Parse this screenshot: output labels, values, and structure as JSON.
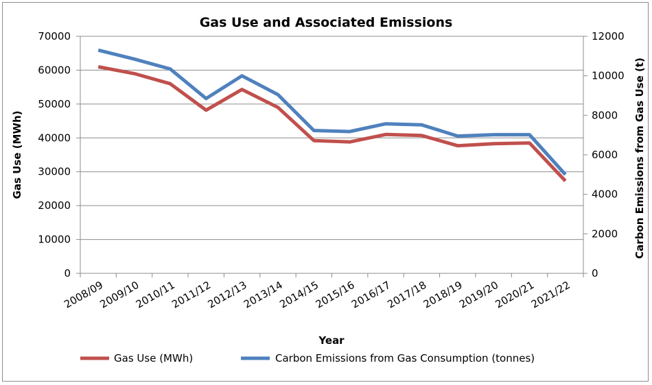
{
  "chart_data": {
    "type": "line",
    "title": "Gas Use and Associated Emissions",
    "xlabel": "Year",
    "ylabel": "Gas Use (MWh)",
    "y2label": "Carbon Emissions from Gas Use (t)",
    "categories": [
      "2008/09",
      "2009/10",
      "2010/11",
      "2011/12",
      "2012/13",
      "2013/14",
      "2014/15",
      "2015/16",
      "2016/17",
      "2017/18",
      "2018/19",
      "2019/20",
      "2020/21",
      "2021/22"
    ],
    "ylim": [
      0,
      70000
    ],
    "yticks": [
      0,
      10000,
      20000,
      30000,
      40000,
      50000,
      60000,
      70000
    ],
    "y2lim": [
      0,
      12000
    ],
    "y2ticks": [
      0,
      2000,
      4000,
      6000,
      8000,
      10000,
      12000
    ],
    "grid": true,
    "legend_position": "bottom",
    "series": [
      {
        "name": "Gas Use (MWh)",
        "axis": "left",
        "color": "#c0504d",
        "values": [
          61000,
          59000,
          56000,
          48200,
          54300,
          49000,
          39200,
          38800,
          41000,
          40700,
          37700,
          38300,
          38500,
          27300
        ]
      },
      {
        "name": "Carbon Emissions from Gas Consumption (tonnes)",
        "axis": "right",
        "color": "#4f81bd",
        "values": [
          11300,
          10850,
          10350,
          8850,
          10000,
          9050,
          7230,
          7180,
          7570,
          7520,
          6950,
          7020,
          7020,
          5000
        ]
      }
    ]
  }
}
